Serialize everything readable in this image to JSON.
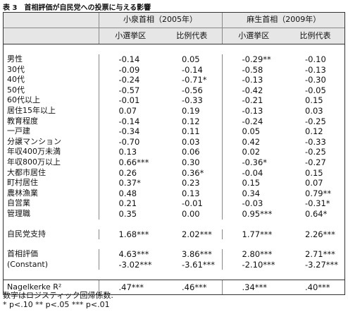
{
  "title": "表 3　首相評価が自民党への投票に与える影響",
  "table": {
    "header": {
      "groups": [
        "小泉首相（2005年）",
        "麻生首相（2009年）"
      ],
      "columns": [
        "小選挙区",
        "比例代表",
        "小選挙区",
        "比例代表"
      ]
    },
    "sections": [
      {
        "rows": [
          [
            "男性",
            "-0.14",
            "0.05",
            "-0.29**",
            "-0.10"
          ],
          [
            "30代",
            "-0.09",
            "-0.14",
            "-0.58",
            "-0.13"
          ],
          [
            "40代",
            "-0.24",
            "-0.71*",
            "-0.13",
            "-0.30"
          ],
          [
            "50代",
            "-0.57",
            "-0.56",
            "-0.42",
            "-0.05"
          ],
          [
            "60代以上",
            "-0.01",
            "-0.33",
            "-0.21",
            "0.15"
          ],
          [
            "居住15年以上",
            "0.07",
            "0.19",
            "-0.13",
            "0.03"
          ],
          [
            "教育程度",
            "-0.14",
            "0.12",
            "-0.24",
            "-0.25"
          ],
          [
            "一戸建",
            "-0.34",
            "0.11",
            "0.05",
            "0.12"
          ],
          [
            "分譲マンション",
            "-0.70",
            "0.03",
            "0.42",
            "-0.33"
          ],
          [
            "年収400万未満",
            "0.13",
            "0.06",
            "0.02",
            "-0.25"
          ],
          [
            "年収800万以上",
            "0.66***",
            "0.30",
            "-0.36*",
            "-0.27"
          ],
          [
            "大都市居住",
            "0.26",
            "0.36*",
            "-0.04",
            "0.15"
          ],
          [
            "町村居住",
            "0.37*",
            "0.23",
            "0.15",
            "0.07"
          ],
          [
            "農林漁業",
            "0.48",
            "0.13",
            "0.34",
            "0.79**"
          ],
          [
            "自営業",
            "0.21",
            "-0.01",
            "-0.03",
            "-0.31*"
          ],
          [
            "管理職",
            "0.35",
            "0.00",
            "0.95***",
            "0.64*"
          ]
        ]
      },
      {
        "rows": [
          [
            "自民党支持",
            "1.68***",
            "2.02***",
            "1.77***",
            "2.26***"
          ]
        ]
      },
      {
        "rows": [
          [
            "首相評価",
            "4.63***",
            "3.86***",
            "2.80***",
            "2.71***"
          ],
          [
            "(Constant)",
            "-3.02***",
            "-3.61***",
            "-2.10***",
            "-3.27***"
          ]
        ]
      }
    ],
    "footer": [
      "Nagelkerke R²",
      ".47***",
      ".46***",
      ".34***",
      ".40***"
    ]
  },
  "notes": [
    "数字はロジスティック回帰係数.",
    "* p<.10  ** p<.05  *** p<.01"
  ]
}
